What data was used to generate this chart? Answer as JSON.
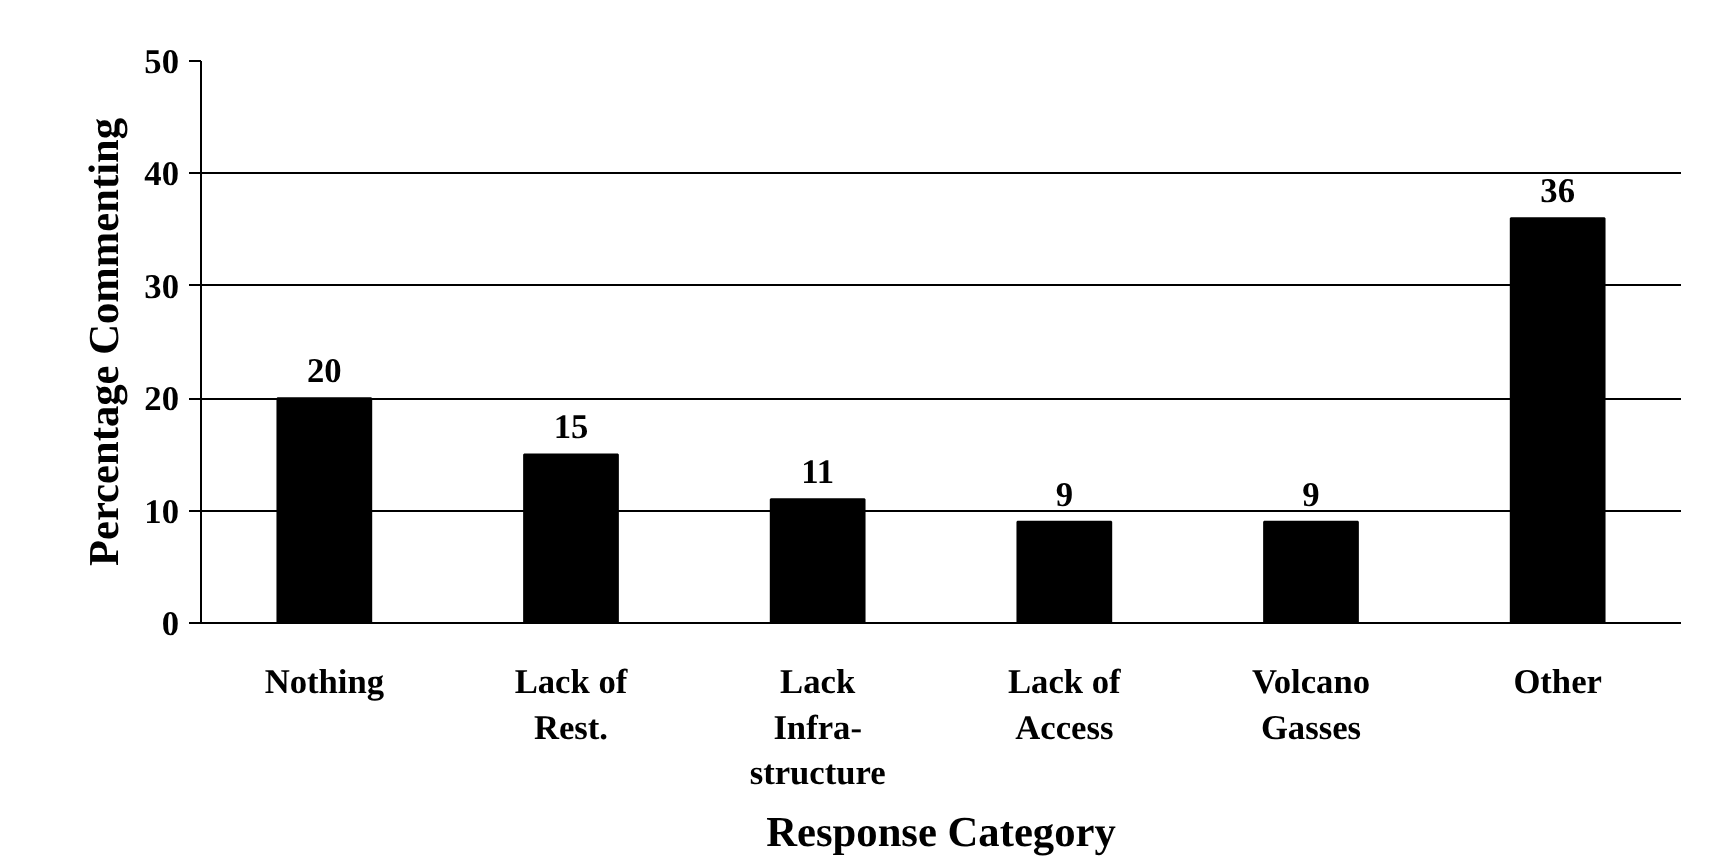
{
  "chart_data": {
    "type": "bar",
    "categories": [
      "Nothing",
      "Lack of\nRest.",
      "Lack\nInfra-\nstructure",
      "Lack of\nAccess",
      "Volcano\nGasses",
      "Other"
    ],
    "values": [
      20,
      15,
      11,
      9,
      9,
      36
    ],
    "color": "#000000",
    "xlabel": "Response Category",
    "ylabel": "Percentage Commenting",
    "ylim": [
      0,
      50
    ],
    "yticks": [
      0,
      10,
      20,
      30,
      40,
      50
    ],
    "grid": "y",
    "data_labels": true
  }
}
